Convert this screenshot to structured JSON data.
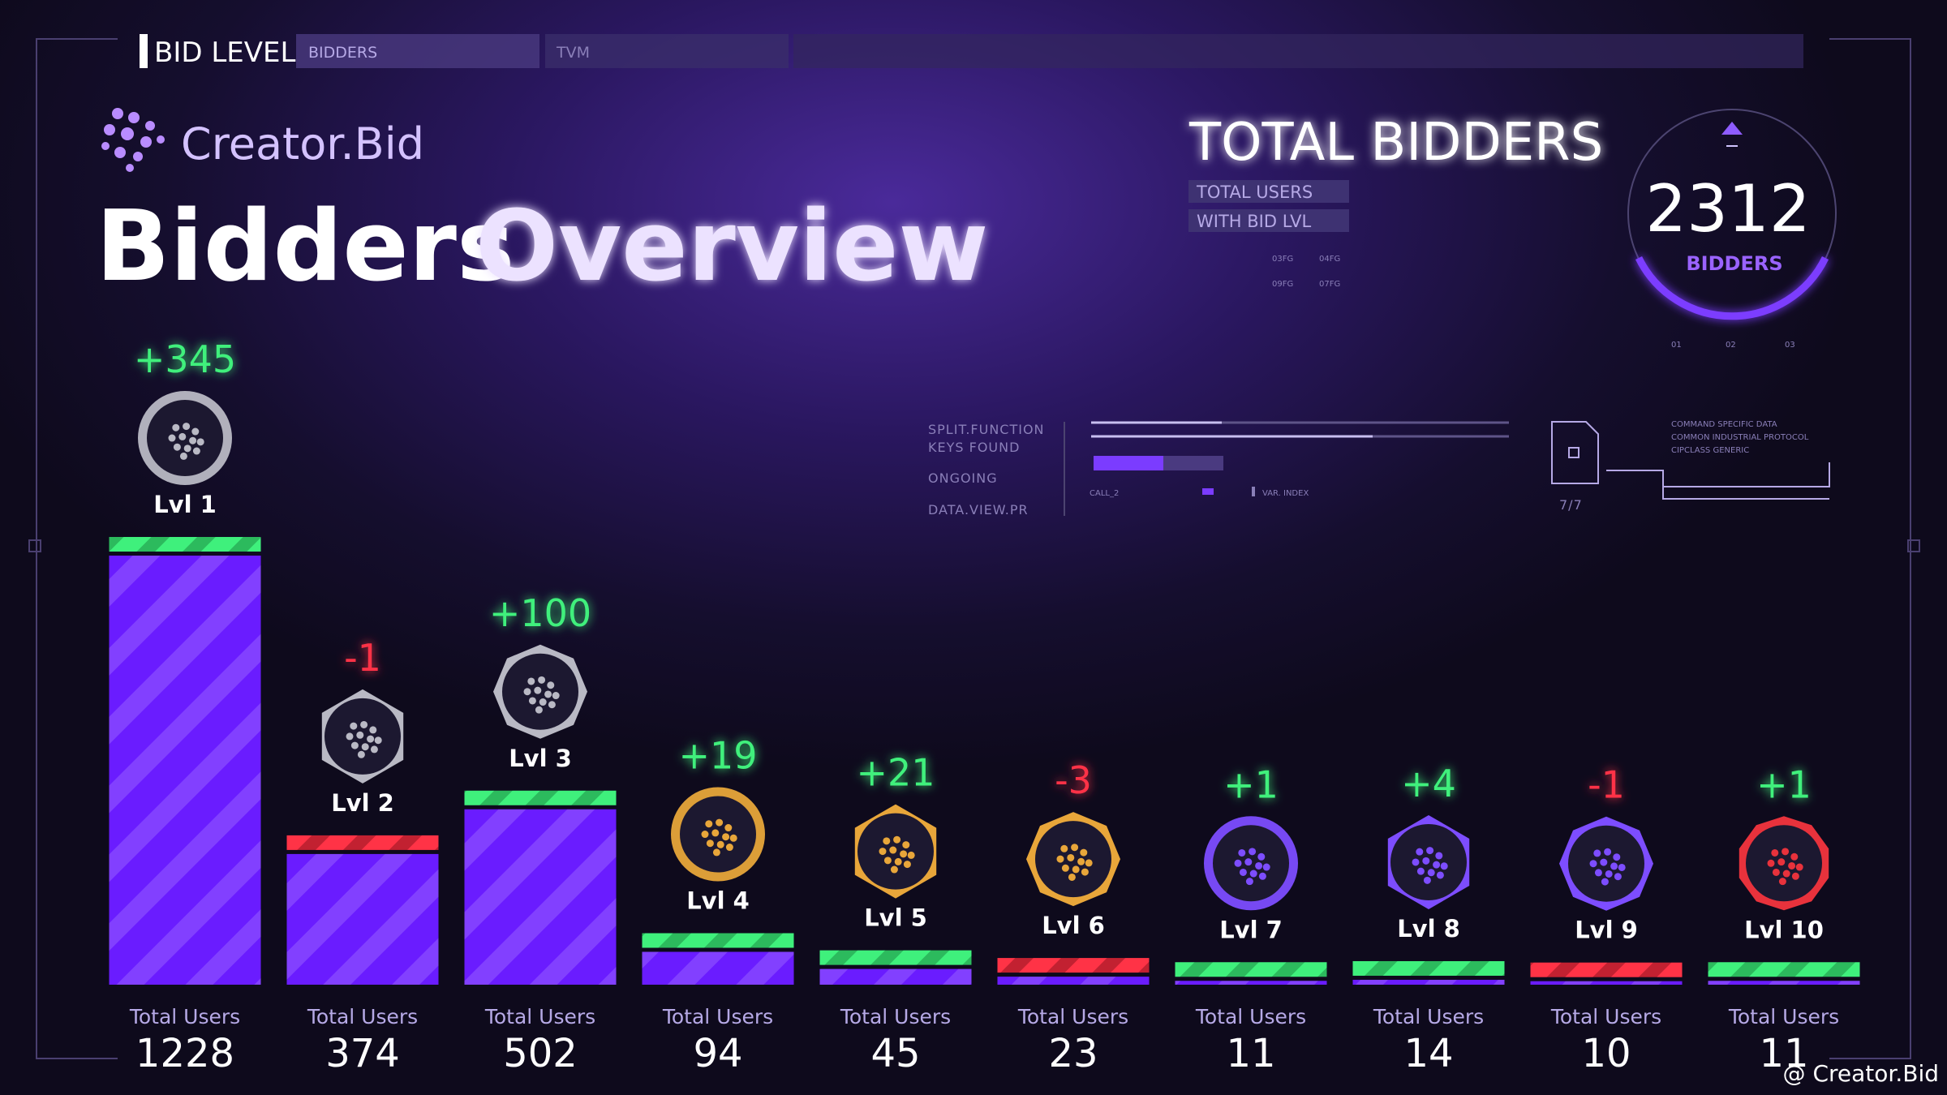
{
  "tabs": [
    "BID LEVEL",
    "BIDDERS",
    "TVM"
  ],
  "brand": "Creator.Bid",
  "title": {
    "first": "Bidders",
    "second": "Overview"
  },
  "summary": {
    "title": "TOTAL BIDDERS",
    "tags": [
      "TOTAL USERS",
      "WITH BID LVL"
    ],
    "codes": [
      "03FG",
      "04FG",
      "09FG",
      "07FG"
    ],
    "value": 2312,
    "unit": "BIDDERS",
    "dial_ticks": [
      "01",
      "02",
      "03"
    ]
  },
  "hud": {
    "labels": [
      "SPLIT.FUNCTION",
      "KEYS FOUND",
      "ONGOING",
      "DATA.VIEW.PR"
    ],
    "call": "CALL_2",
    "index": "VAR. INDEX",
    "file_count": "7/7",
    "specs": [
      "COMMAND SPECIFIC DATA",
      "COMMON INDUSTRIAL PROTOCOL",
      "CIPCLASS GENERIC"
    ]
  },
  "watermark": "@ Creator.Bid",
  "chart_data": {
    "type": "bar",
    "categories": [
      "Lvl 1",
      "Lvl 2",
      "Lvl 3",
      "Lvl 4",
      "Lvl 5",
      "Lvl 6",
      "Lvl 7",
      "Lvl 8",
      "Lvl 9",
      "Lvl 10"
    ],
    "value_caption": "Total Users",
    "values": [
      1228,
      374,
      502,
      94,
      45,
      23,
      11,
      14,
      10,
      11
    ],
    "changes": [
      345,
      -1,
      100,
      19,
      21,
      -3,
      1,
      4,
      -1,
      1
    ],
    "change_labels": [
      "+345",
      "-1",
      "+100",
      "+19",
      "+21",
      "-3",
      "+1",
      "+4",
      "-1",
      "+1"
    ],
    "color": "#6a1cff",
    "up_color": "#3ff07c",
    "down_color": "#ff3346",
    "badge_colors": [
      "#b9b9c4",
      "#b9b9c4",
      "#b9b9c4",
      "#e8a63a",
      "#e8a63a",
      "#e8a63a",
      "#7d4dff",
      "#7d4dff",
      "#7d4dff",
      "#e8323c"
    ],
    "ylim": [
      0,
      1300
    ]
  }
}
